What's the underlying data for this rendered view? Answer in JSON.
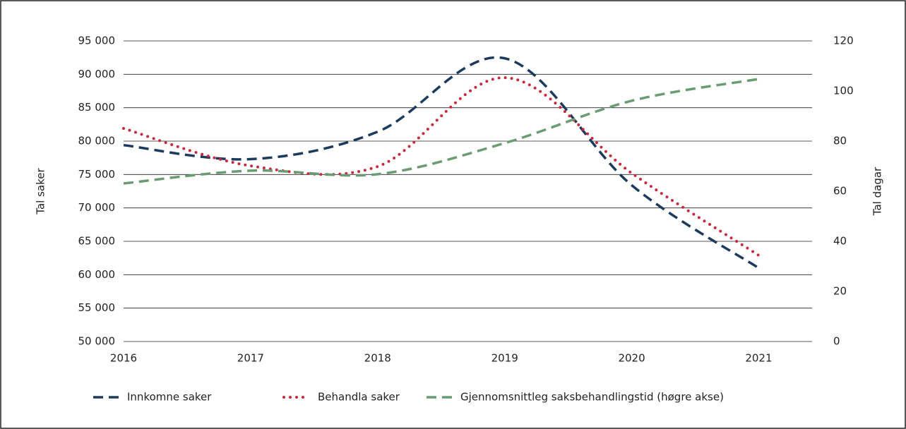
{
  "chart_data": {
    "type": "line",
    "x": [
      2016,
      2017,
      2018,
      2019,
      2020,
      2021
    ],
    "xlim": [
      2016,
      2021.42
    ],
    "xticks": [
      2016,
      2017,
      2018,
      2019,
      2020,
      2021
    ],
    "ylabel": "Tal saker",
    "y2label": "Tal dagar",
    "ylim": [
      50000,
      95000
    ],
    "yticks": [
      {
        "value": 50000,
        "label": "50 000"
      },
      {
        "value": 55000,
        "label": "55 000"
      },
      {
        "value": 60000,
        "label": "60 000"
      },
      {
        "value": 65000,
        "label": "65 000"
      },
      {
        "value": 70000,
        "label": "70 000"
      },
      {
        "value": 75000,
        "label": "75 000"
      },
      {
        "value": 80000,
        "label": "80 000"
      },
      {
        "value": 85000,
        "label": "85 000"
      },
      {
        "value": 90000,
        "label": "90 000"
      },
      {
        "value": 95000,
        "label": "95 000"
      }
    ],
    "y2lim": [
      0,
      120
    ],
    "y2ticks": [
      0,
      20,
      40,
      60,
      80,
      100,
      120
    ],
    "grid": true,
    "legend": "bottom",
    "series": [
      {
        "name": "Innkomne saker",
        "color": "#1b3a5c",
        "style": "dashed",
        "values": [
          79400,
          77300,
          81400,
          92400,
          73400,
          61000
        ]
      },
      {
        "name": "Behandla saker",
        "color": "#c8283e",
        "style": "dotted",
        "values": [
          81900,
          76300,
          76200,
          89500,
          75200,
          62900
        ]
      },
      {
        "name": "Gjennomsnittleg saksbehandlingstid (høgre akse)",
        "color": "#6a9b72",
        "style": "dashed",
        "axis": "y2",
        "values": [
          63.1,
          68.2,
          66.8,
          79.2,
          96.1,
          104.8
        ]
      }
    ]
  }
}
